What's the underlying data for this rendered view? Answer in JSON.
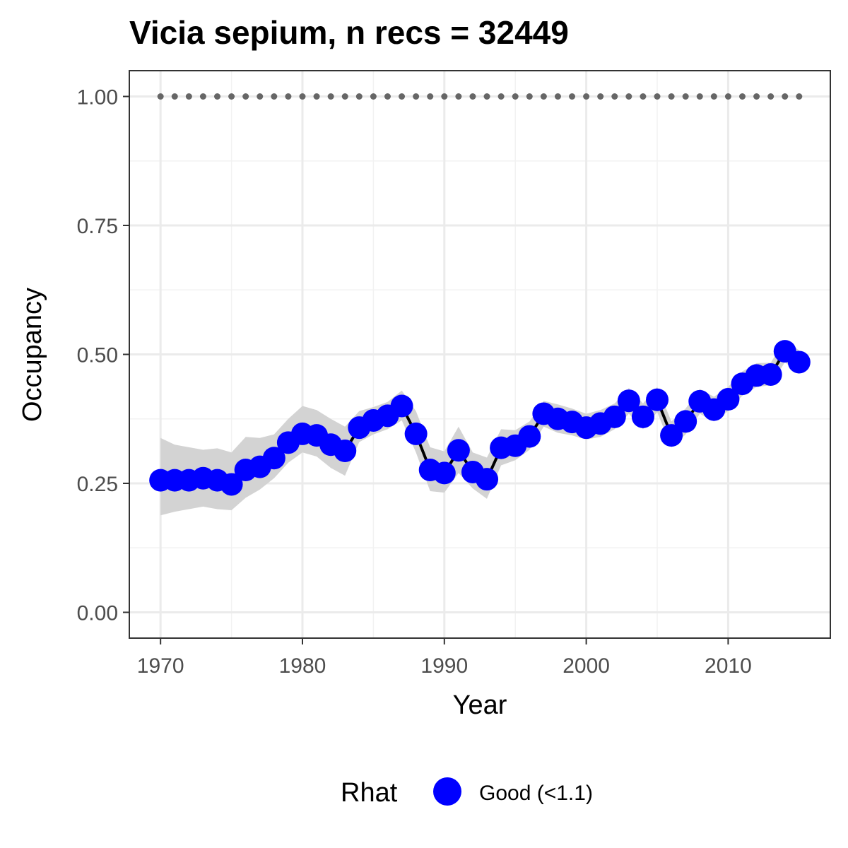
{
  "chart_data": {
    "type": "line",
    "title": "Vicia sepium, n recs = 32449",
    "xlabel": "Year",
    "ylabel": "Occupancy",
    "xlim": [
      1967.8,
      2017.2
    ],
    "ylim": [
      -0.05,
      1.05
    ],
    "x_ticks": [
      1970,
      1980,
      1990,
      2000,
      2010
    ],
    "x_tick_labels": [
      "1970",
      "1980",
      "1990",
      "2000",
      "2010"
    ],
    "y_ticks": [
      0,
      0.25,
      0.5,
      0.75,
      1.0
    ],
    "y_tick_labels": [
      "0.00",
      "0.25",
      "0.50",
      "0.75",
      "1.00"
    ],
    "grid": true,
    "legend": {
      "title": "Rhat",
      "position": "bottom",
      "items": [
        {
          "label": "Good (<1.1)",
          "color": "#0000ff"
        }
      ]
    },
    "colors": {
      "points": "#0000ff",
      "line": "#000000",
      "ribbon": "#d3d3d3",
      "reference": "#666666"
    },
    "series": [
      {
        "x": [
          1970,
          1971,
          1972,
          1973,
          1974,
          1975,
          1976,
          1977,
          1978,
          1979,
          1980,
          1981,
          1982,
          1983,
          1984,
          1985,
          1986,
          1987,
          1988,
          1989,
          1990,
          1991,
          1992,
          1993,
          1994,
          1995,
          1996,
          1997,
          1998,
          1999,
          2000,
          2001,
          2002,
          2003,
          2004,
          2005,
          2006,
          2007,
          2008,
          2009,
          2010,
          2011,
          2012,
          2013,
          2014,
          2015
        ],
        "values": [
          0.256,
          0.256,
          0.256,
          0.26,
          0.256,
          0.248,
          0.276,
          0.282,
          0.299,
          0.329,
          0.346,
          0.343,
          0.325,
          0.313,
          0.358,
          0.372,
          0.381,
          0.4,
          0.346,
          0.276,
          0.27,
          0.314,
          0.272,
          0.258,
          0.319,
          0.323,
          0.341,
          0.385,
          0.375,
          0.369,
          0.358,
          0.366,
          0.379,
          0.41,
          0.379,
          0.412,
          0.343,
          0.37,
          0.409,
          0.393,
          0.413,
          0.443,
          0.459,
          0.461,
          0.506,
          0.485
        ],
        "lower": [
          0.188,
          0.195,
          0.2,
          0.205,
          0.2,
          0.198,
          0.222,
          0.238,
          0.26,
          0.29,
          0.31,
          0.302,
          0.28,
          0.265,
          0.33,
          0.345,
          0.355,
          0.372,
          0.31,
          0.235,
          0.232,
          0.27,
          0.24,
          0.22,
          0.285,
          0.295,
          0.315,
          0.36,
          0.348,
          0.343,
          0.335,
          0.34,
          0.355,
          0.385,
          0.355,
          0.388,
          0.32,
          0.345,
          0.385,
          0.37,
          0.39,
          0.42,
          0.437,
          0.44,
          0.485,
          0.462
        ],
        "upper": [
          0.338,
          0.325,
          0.32,
          0.315,
          0.318,
          0.31,
          0.34,
          0.338,
          0.345,
          0.375,
          0.4,
          0.392,
          0.375,
          0.36,
          0.39,
          0.398,
          0.408,
          0.43,
          0.39,
          0.32,
          0.312,
          0.36,
          0.31,
          0.3,
          0.355,
          0.353,
          0.37,
          0.41,
          0.403,
          0.395,
          0.385,
          0.392,
          0.405,
          0.435,
          0.405,
          0.437,
          0.37,
          0.395,
          0.433,
          0.418,
          0.437,
          0.467,
          0.483,
          0.484,
          0.528,
          0.508
        ]
      }
    ],
    "reference": {
      "x": [
        1970,
        1971,
        1972,
        1973,
        1974,
        1975,
        1976,
        1977,
        1978,
        1979,
        1980,
        1981,
        1982,
        1983,
        1984,
        1985,
        1986,
        1987,
        1988,
        1989,
        1990,
        1991,
        1992,
        1993,
        1994,
        1995,
        1996,
        1997,
        1998,
        1999,
        2000,
        2001,
        2002,
        2003,
        2004,
        2005,
        2006,
        2007,
        2008,
        2009,
        2010,
        2011,
        2012,
        2013,
        2014,
        2015
      ],
      "value": 1.0
    }
  }
}
